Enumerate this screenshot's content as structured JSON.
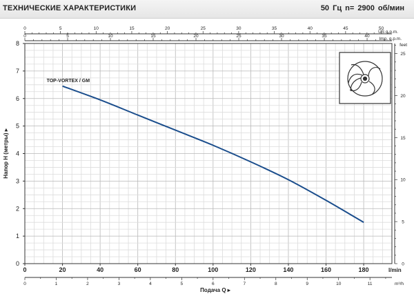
{
  "header": {
    "title": "ТЕХНИЧЕСКИЕ ХАРАКТЕРИСТИКИ",
    "spec": "50 Гц   n= 2900 об/мин"
  },
  "chart_data": {
    "type": "line",
    "series": [
      {
        "name": "TOP-VORTEX / GM",
        "color": "#1a4d8c",
        "x": [
          20,
          40,
          60,
          80,
          100,
          120,
          140,
          160,
          180
        ],
        "y": [
          6.45,
          5.95,
          5.4,
          4.85,
          4.3,
          3.7,
          3.05,
          2.3,
          1.5
        ]
      }
    ],
    "ylabel": "Напор H (метры)",
    "ylim": [
      0,
      8
    ],
    "yticks": [
      0,
      1,
      2,
      3,
      4,
      5,
      6,
      7,
      8
    ],
    "x_lpm": {
      "unit": "l/min",
      "lim": [
        0,
        195
      ],
      "ticks": [
        0,
        20,
        40,
        60,
        80,
        100,
        120,
        140,
        160,
        180
      ]
    },
    "x_m3h": {
      "unit": "m³/h",
      "lim": [
        0,
        11.7
      ],
      "ticks": [
        0,
        1,
        2,
        3,
        4,
        5,
        6,
        7,
        8,
        9,
        10,
        11
      ]
    },
    "xlabel": "Подача Q",
    "x_usgpm": {
      "unit": "US g.p.m.",
      "lim": [
        0,
        51.5
      ],
      "ticks": [
        0,
        5,
        10,
        15,
        20,
        25,
        30,
        35,
        40,
        45,
        50
      ]
    },
    "x_impgpm": {
      "unit": "Imp. g.p.m.",
      "lim": [
        0,
        42.9
      ],
      "ticks": [
        0,
        5,
        10,
        15,
        20,
        25,
        30,
        35,
        40
      ]
    },
    "y_feet": {
      "unit": "feet",
      "lim": [
        0,
        26.2
      ],
      "ticks": [
        0,
        5,
        10,
        15,
        20,
        25
      ]
    },
    "grid": true,
    "inset": "impeller-icon"
  }
}
